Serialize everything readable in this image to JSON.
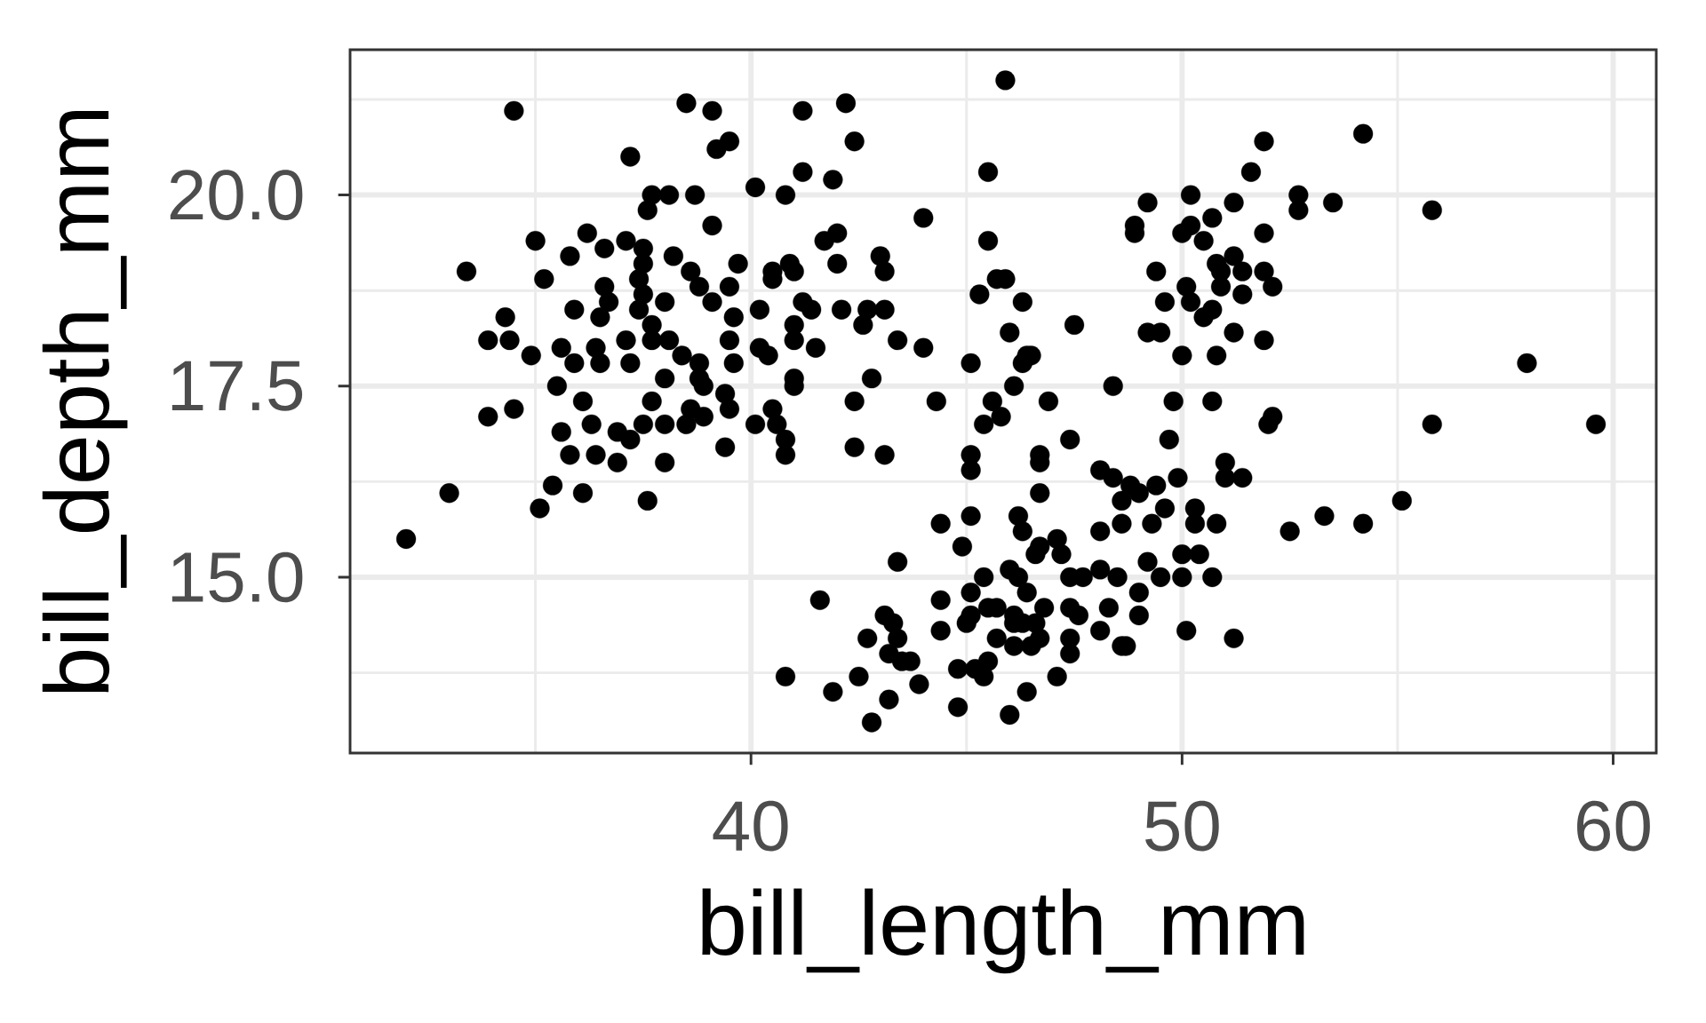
{
  "chart_data": {
    "type": "scatter",
    "xlabel": "bill_length_mm",
    "ylabel": "bill_depth_mm",
    "color": "#000000",
    "marker": "circle",
    "grid": true,
    "xlim": [
      30.7,
      61.0
    ],
    "ylim": [
      12.7,
      21.9
    ],
    "xticks": [
      40,
      50,
      60
    ],
    "yticks": [
      {
        "value": 15,
        "label": "15.0"
      },
      {
        "value": 17.5,
        "label": "17.5"
      },
      {
        "value": 20,
        "label": "20.0"
      }
    ],
    "x": [
      32.0,
      33.0,
      33.4,
      34.5,
      33.9,
      34.5,
      35.1,
      35.4,
      36.1,
      37.6,
      35.8,
      36.4,
      36.9,
      38.0,
      39.4,
      40.8,
      38.5,
      39.1,
      39.5,
      39.2,
      37.2,
      40.1,
      40.8,
      37.7,
      38.1,
      38.7,
      37.6,
      39.1,
      35.0,
      36.2,
      36.6,
      35.8,
      37.1,
      37.5,
      38.2,
      35.2,
      37.5,
      37.4,
      38.6,
      39.7,
      39.5,
      40.5,
      36.6,
      38.8,
      39.1,
      37.5,
      38.0,
      36.7,
      35.9,
      36.5,
      37.4,
      39.6,
      40.2,
      34.3,
      33.9,
      34.4,
      34.9,
      35.6,
      35.9,
      36.4,
      36.5,
      37.1,
      37.2,
      37.7,
      37.7,
      38.1,
      38.4,
      38.8,
      39.5,
      39.6,
      40.2,
      40.4,
      38.0,
      35.5,
      36.1,
      38.8,
      38.9,
      39.4,
      37.7,
      38.6,
      35.6,
      36.3,
      36.9,
      37.2,
      37.5,
      38.0,
      38.5,
      38.9,
      39.5,
      40.1,
      40.5,
      40.8,
      40.8,
      41.2,
      42.2,
      42.4,
      41.2,
      41.9,
      44.0,
      45.9,
      45.5,
      45.5,
      41.7,
      42.0,
      42.0,
      43.0,
      43.1,
      40.9,
      41.0,
      41.2,
      41.4,
      42.1,
      42.7,
      43.1,
      42.6,
      41.0,
      41.5,
      43.4,
      44.0,
      41.0,
      41.0,
      42.8,
      42.4,
      44.3,
      45.3,
      45.7,
      45.9,
      46.3,
      46.0,
      47.5,
      45.1,
      46.4,
      46.5,
      46.3,
      46.1,
      48.4,
      45.6,
      46.9,
      49.2,
      48.9,
      48.9,
      50.2,
      50.0,
      50.5,
      50.7,
      49.4,
      50.1,
      49.6,
      50.5,
      50.7,
      49.2,
      49.5,
      50.0,
      50.8,
      49.8,
      50.7,
      50.8,
      50.9,
      51.9,
      54.2,
      51.6,
      51.2,
      52.7,
      52.7,
      53.5,
      55.8,
      51.9,
      51.2,
      50.9,
      51.4,
      51.9,
      52.1,
      51.4,
      51.2,
      51.9,
      58.0,
      52.1,
      52.0,
      55.8,
      59.6,
      51.0,
      51.0,
      51.4,
      50.8,
      52.5,
      53.3,
      54.2,
      55.1,
      50.7,
      51.2,
      45.4,
      45.8,
      42.4,
      43.1,
      45.1,
      45.1,
      46.7,
      46.7,
      47.4,
      49.7,
      46.7,
      48.1,
      48.4,
      48.8,
      49.0,
      49.4,
      49.9,
      49.6,
      48.6,
      50.3,
      49.3,
      50.3,
      48.6,
      48.1,
      44.4,
      45.1,
      44.9,
      46.2,
      46.3,
      46.7,
      46.6,
      47.1,
      47.2,
      43.4,
      46.0,
      45.4,
      46.2,
      46.4,
      47.4,
      47.7,
      48.1,
      48.5,
      49.2,
      49.0,
      49.5,
      50.0,
      50.0,
      50.4,
      41.6,
      43.1,
      43.3,
      42.7,
      43.4,
      43.2,
      43.5,
      43.7,
      44.4,
      44.4,
      45.1,
      45.1,
      45.0,
      45.5,
      45.7,
      46.1,
      46.1,
      46.3,
      46.6,
      46.7,
      46.8,
      47.4,
      47.6,
      45.7,
      46.1,
      46.5,
      47.4,
      47.4,
      47.1,
      48.3,
      48.1,
      48.6,
      48.7,
      49.0,
      50.1,
      44.8,
      45.2,
      45.4,
      45.5,
      44.8,
      46.0,
      46.4,
      43.9,
      43.2,
      42.8,
      41.9,
      42.5,
      50.2,
      50.2,
      40.5,
      41.0,
      40.6
    ],
    "values": [
      15.5,
      16.1,
      19.0,
      21.1,
      17.1,
      17.2,
      15.9,
      16.2,
      16.1,
      16.0,
      16.6,
      16.6,
      16.5,
      16.5,
      16.7,
      13.7,
      21.2,
      21.1,
      20.7,
      20.6,
      20.5,
      20.1,
      20.0,
      20.0,
      20.0,
      20.0,
      19.8,
      19.6,
      19.4,
      19.5,
      19.3,
      19.2,
      19.4,
      19.3,
      19.2,
      18.9,
      19.1,
      18.9,
      19.0,
      19.1,
      18.8,
      19.0,
      18.8,
      18.8,
      18.6,
      18.7,
      18.6,
      18.6,
      18.5,
      18.4,
      18.5,
      18.4,
      18.5,
      18.4,
      18.1,
      18.1,
      17.9,
      18.0,
      17.8,
      18.0,
      17.8,
      18.1,
      17.8,
      18.3,
      18.1,
      18.1,
      17.9,
      17.8,
      18.1,
      17.8,
      18.0,
      17.9,
      17.6,
      17.5,
      17.3,
      17.6,
      17.5,
      17.4,
      17.3,
      17.2,
      16.9,
      17.0,
      16.9,
      16.8,
      17.0,
      17.0,
      17.0,
      17.1,
      17.2,
      17.0,
      17.2,
      16.8,
      16.6,
      21.1,
      21.2,
      20.7,
      20.3,
      20.2,
      19.7,
      21.5,
      20.3,
      19.4,
      19.4,
      19.5,
      19.1,
      19.2,
      19.0,
      19.1,
      19.0,
      18.6,
      18.5,
      18.5,
      18.5,
      18.5,
      18.3,
      18.1,
      18.0,
      18.1,
      18.0,
      17.6,
      17.5,
      17.6,
      17.3,
      17.3,
      18.7,
      18.9,
      18.9,
      18.6,
      18.2,
      18.3,
      17.8,
      17.9,
      17.9,
      17.8,
      17.5,
      17.5,
      17.3,
      17.3,
      19.9,
      19.6,
      19.5,
      20.0,
      19.5,
      19.4,
      19.7,
      19.0,
      18.8,
      18.6,
      18.4,
      18.5,
      18.2,
      18.2,
      17.9,
      17.9,
      17.3,
      17.3,
      19.1,
      18.8,
      20.7,
      20.8,
      20.3,
      19.9,
      20.0,
      19.8,
      19.9,
      19.8,
      19.5,
      19.2,
      19.0,
      19.0,
      19.0,
      18.8,
      18.7,
      18.2,
      18.1,
      17.8,
      17.1,
      17.0,
      17.0,
      17.0,
      16.5,
      16.3,
      16.3,
      15.7,
      15.6,
      15.8,
      15.7,
      16.0,
      15.0,
      14.2,
      17.0,
      17.1,
      16.7,
      16.6,
      16.6,
      16.4,
      16.6,
      16.5,
      16.8,
      16.8,
      16.1,
      16.4,
      16.3,
      16.2,
      16.1,
      16.2,
      16.3,
      15.9,
      16.0,
      15.9,
      15.7,
      15.7,
      15.7,
      15.6,
      15.7,
      15.8,
      15.4,
      15.8,
      15.6,
      15.4,
      15.3,
      15.5,
      15.3,
      15.2,
      15.1,
      15.0,
      15.0,
      14.8,
      15.0,
      15.0,
      15.1,
      15.0,
      15.2,
      14.8,
      15.0,
      15.0,
      15.3,
      15.3,
      14.7,
      14.5,
      14.4,
      14.2,
      14.2,
      14.0,
      13.9,
      13.9,
      14.7,
      14.3,
      14.8,
      14.5,
      14.4,
      14.6,
      14.6,
      14.5,
      14.4,
      14.4,
      14.4,
      14.2,
      14.6,
      14.6,
      14.5,
      14.2,
      14.1,
      14.1,
      14.2,
      14.0,
      13.7,
      14.6,
      14.3,
      14.1,
      14.1,
      14.5,
      14.3,
      13.8,
      13.8,
      13.7,
      13.9,
      13.3,
      13.2,
      13.5,
      13.6,
      13.4,
      13.1,
      13.5,
      13.7,
      19.6,
      18.6,
      18.9,
      18.3,
      17.0
    ]
  }
}
